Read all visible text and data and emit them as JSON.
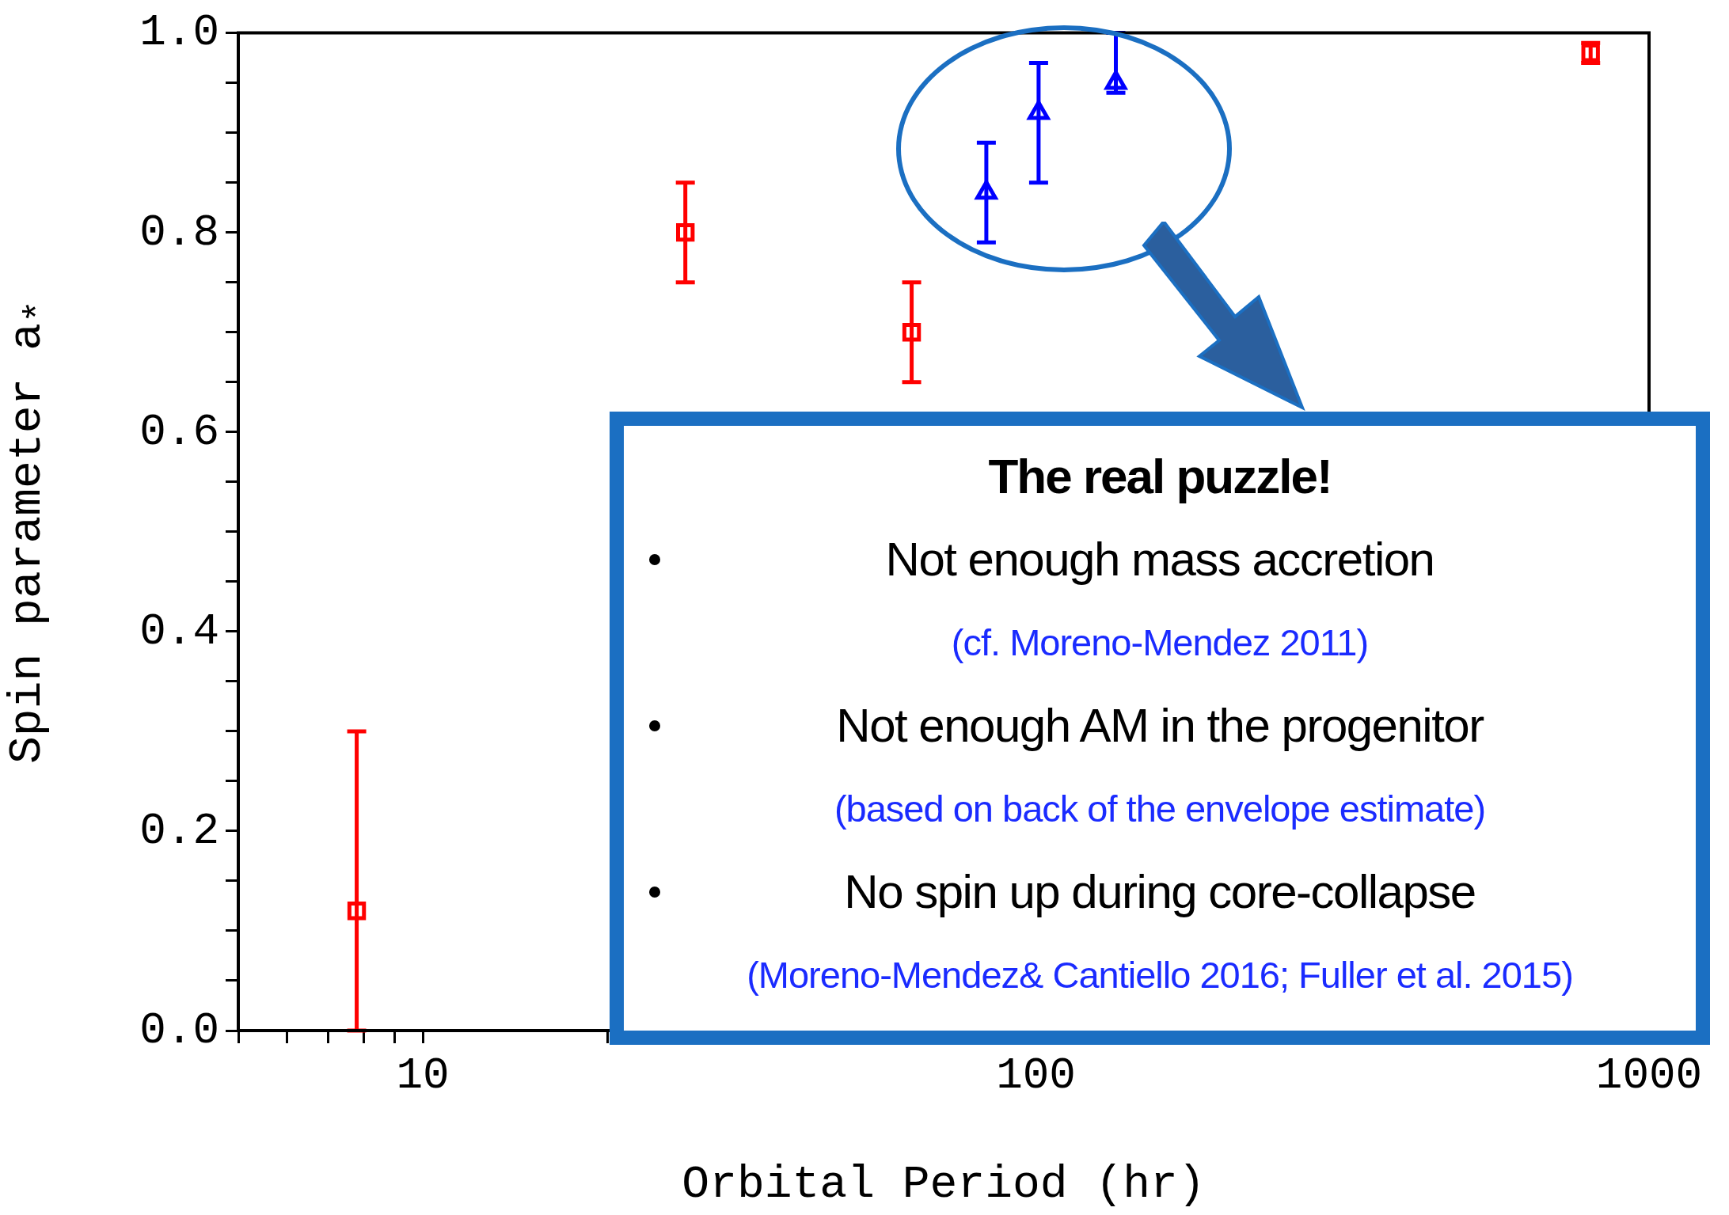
{
  "chart_data": {
    "type": "scatter",
    "xlabel": "Orbital Period (hr)",
    "ylabel": "Spin parameter a$_{*}$",
    "log": "x",
    "grid": false,
    "legend": false,
    "xlim": [
      5,
      1000
    ],
    "ylim": [
      0,
      1.0
    ],
    "xticks": [
      {
        "value": 5,
        "label": null
      },
      {
        "value": 6,
        "label": null
      },
      {
        "value": 7,
        "label": null
      },
      {
        "value": 8,
        "label": null
      },
      {
        "value": 9,
        "label": null
      },
      10,
      {
        "value": 20,
        "label": null
      },
      {
        "value": 30,
        "label": null
      },
      {
        "value": 40,
        "label": null
      },
      {
        "value": 50,
        "label": null
      },
      {
        "value": 60,
        "label": null
      },
      {
        "value": 70,
        "label": null
      },
      {
        "value": 80,
        "label": null
      },
      {
        "value": 90,
        "label": null
      },
      100,
      {
        "value": 200,
        "label": null
      },
      {
        "value": 300,
        "label": null
      },
      {
        "value": 400,
        "label": null
      },
      {
        "value": 500,
        "label": null
      },
      {
        "value": 600,
        "label": null
      },
      {
        "value": 700,
        "label": null
      },
      {
        "value": 800,
        "label": null
      },
      {
        "value": 900,
        "label": null
      },
      1000
    ],
    "yticks": [
      {
        "value": 0,
        "label": "0.0"
      },
      {
        "value": 0.05,
        "label": null
      },
      {
        "value": 0.1,
        "label": null
      },
      {
        "value": 0.15,
        "label": null
      },
      {
        "value": 0.2,
        "label": "0.2"
      },
      {
        "value": 0.25,
        "label": null
      },
      {
        "value": 0.3,
        "label": null
      },
      {
        "value": 0.35,
        "label": null
      },
      {
        "value": 0.4,
        "label": "0.4"
      },
      {
        "value": 0.45,
        "label": null
      },
      {
        "value": 0.5,
        "label": null
      },
      {
        "value": 0.55,
        "label": null
      },
      {
        "value": 0.6,
        "label": "0.6"
      },
      {
        "value": 0.65,
        "label": null
      },
      {
        "value": 0.7,
        "label": null
      },
      {
        "value": 0.75,
        "label": null
      },
      {
        "value": 0.8,
        "label": "0.8"
      },
      {
        "value": 0.85,
        "label": null
      },
      {
        "value": 0.9,
        "label": null
      },
      {
        "value": 0.95,
        "label": null
      },
      {
        "value": 1.0,
        "label": "1.0"
      }
    ],
    "series": [
      {
        "color": "#ff0000",
        "marker": "square",
        "x": [
          7.8,
          26.8,
          62.7,
          803
        ],
        "values": [
          0.12,
          0.8,
          0.7,
          0.98
        ],
        "errors": [
          [
            0,
            0.3
          ],
          0.05,
          0.05,
          0.01
        ]
      },
      {
        "color": "#0000ff",
        "marker": "triangle",
        "x": [
          83,
          101,
          135
        ],
        "values": [
          0.84,
          0.92,
          0.95
        ],
        "errors": [
          0.05,
          [
            0.85,
            0.97
          ],
          [
            0.94,
            1.0
          ]
        ]
      }
    ],
    "annotations": [
      "The real puzzle!",
      "Not enough mass accretion",
      "(cf. Moreno-Mendez 2011)",
      "Not enough AM in the progenitor",
      "(based on back of the envelope estimate)",
      "No spin up during core-collapse",
      "(Moreno-Mendez& Cantiello 2016; Fuller et al. 2015)"
    ]
  }
}
